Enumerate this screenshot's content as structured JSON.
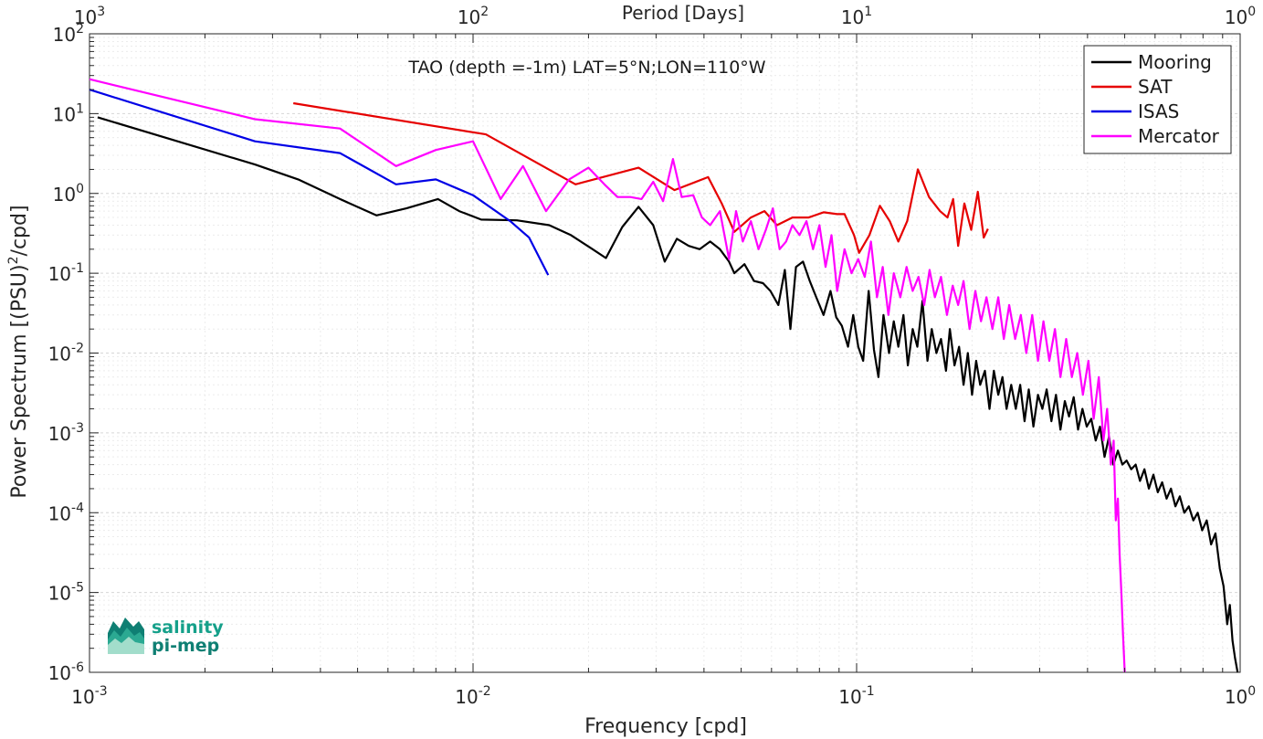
{
  "chart_data": {
    "type": "line",
    "title": "TAO (depth =-1m) LAT=5°N;LON=110°W",
    "xlabel": "Frequency [cpd]",
    "ylabel": "Power Spectrum [(PSU)²/cpd]",
    "ylabel_main": "Power Spectrum [(PSU)",
    "ylabel_sup": "2",
    "ylabel_tail": "/cpd]",
    "top_xlabel": "Period [Days]",
    "x_scale": "log",
    "y_scale": "log",
    "xlim": [
      0.001,
      1
    ],
    "ylim": [
      1e-06,
      100
    ],
    "grid": true,
    "legend_position": "top-right",
    "x_ticks": [
      {
        "value": 0.001,
        "base": "10",
        "exp": "-3"
      },
      {
        "value": 0.01,
        "base": "10",
        "exp": "-2"
      },
      {
        "value": 0.1,
        "base": "10",
        "exp": "-1"
      },
      {
        "value": 1,
        "base": "10",
        "exp": "0"
      }
    ],
    "top_ticks": [
      {
        "period": 1000,
        "base": "10",
        "exp": "3"
      },
      {
        "period": 100,
        "base": "10",
        "exp": "2"
      },
      {
        "period": 10,
        "base": "10",
        "exp": "1"
      },
      {
        "period": 1,
        "base": "10",
        "exp": "0"
      }
    ],
    "y_ticks": [
      {
        "value": 100,
        "base": "10",
        "exp": "2"
      },
      {
        "value": 10,
        "base": "10",
        "exp": "1"
      },
      {
        "value": 1,
        "base": "10",
        "exp": "0"
      },
      {
        "value": 0.1,
        "base": "10",
        "exp": "-1"
      },
      {
        "value": 0.01,
        "base": "10",
        "exp": "-2"
      },
      {
        "value": 0.001,
        "base": "10",
        "exp": "-3"
      },
      {
        "value": 0.0001,
        "base": "10",
        "exp": "-4"
      },
      {
        "value": 1e-05,
        "base": "10",
        "exp": "-5"
      },
      {
        "value": 1e-06,
        "base": "10",
        "exp": "-6"
      }
    ],
    "series": [
      {
        "name": "Mooring",
        "color": "#000000",
        "points": [
          [
            0.00105,
            9
          ],
          [
            0.0027,
            2.3
          ],
          [
            0.0035,
            1.5
          ],
          [
            0.0045,
            0.85
          ],
          [
            0.0056,
            0.53
          ],
          [
            0.0067,
            0.65
          ],
          [
            0.0081,
            0.85
          ],
          [
            0.0092,
            0.6
          ],
          [
            0.0105,
            0.47
          ],
          [
            0.013,
            0.46
          ],
          [
            0.0158,
            0.4
          ],
          [
            0.018,
            0.3
          ],
          [
            0.0205,
            0.2
          ],
          [
            0.0222,
            0.155
          ],
          [
            0.0245,
            0.38
          ],
          [
            0.027,
            0.68
          ],
          [
            0.0295,
            0.4
          ],
          [
            0.0316,
            0.14
          ],
          [
            0.034,
            0.27
          ],
          [
            0.0365,
            0.22
          ],
          [
            0.039,
            0.2
          ],
          [
            0.0415,
            0.25
          ],
          [
            0.044,
            0.2
          ],
          [
            0.0465,
            0.14
          ],
          [
            0.048,
            0.1
          ],
          [
            0.051,
            0.13
          ],
          [
            0.054,
            0.08
          ],
          [
            0.057,
            0.075
          ],
          [
            0.0596,
            0.06
          ],
          [
            0.0625,
            0.04
          ],
          [
            0.065,
            0.11
          ],
          [
            0.0672,
            0.02
          ],
          [
            0.0695,
            0.12
          ],
          [
            0.0725,
            0.14
          ],
          [
            0.0755,
            0.08
          ],
          [
            0.0785,
            0.05
          ],
          [
            0.082,
            0.03
          ],
          [
            0.0855,
            0.06
          ],
          [
            0.0885,
            0.028
          ],
          [
            0.0915,
            0.022
          ],
          [
            0.095,
            0.012
          ],
          [
            0.098,
            0.03
          ],
          [
            0.101,
            0.012
          ],
          [
            0.104,
            0.008
          ],
          [
            0.1075,
            0.06
          ],
          [
            0.111,
            0.011
          ],
          [
            0.114,
            0.005
          ],
          [
            0.1175,
            0.03
          ],
          [
            0.1215,
            0.01
          ],
          [
            0.125,
            0.025
          ],
          [
            0.1285,
            0.012
          ],
          [
            0.1325,
            0.03
          ],
          [
            0.136,
            0.007
          ],
          [
            0.14,
            0.02
          ],
          [
            0.144,
            0.012
          ],
          [
            0.1485,
            0.045
          ],
          [
            0.153,
            0.008
          ],
          [
            0.157,
            0.02
          ],
          [
            0.1615,
            0.01
          ],
          [
            0.166,
            0.015
          ],
          [
            0.171,
            0.006
          ],
          [
            0.175,
            0.02
          ],
          [
            0.18,
            0.007
          ],
          [
            0.185,
            0.012
          ],
          [
            0.19,
            0.004
          ],
          [
            0.195,
            0.01
          ],
          [
            0.2,
            0.003
          ],
          [
            0.205,
            0.008
          ],
          [
            0.21,
            0.004
          ],
          [
            0.216,
            0.006
          ],
          [
            0.222,
            0.002
          ],
          [
            0.228,
            0.006
          ],
          [
            0.234,
            0.003
          ],
          [
            0.24,
            0.005
          ],
          [
            0.246,
            0.002
          ],
          [
            0.253,
            0.004
          ],
          [
            0.26,
            0.002
          ],
          [
            0.267,
            0.004
          ],
          [
            0.274,
            0.0014
          ],
          [
            0.281,
            0.0035
          ],
          [
            0.289,
            0.0012
          ],
          [
            0.297,
            0.003
          ],
          [
            0.305,
            0.002
          ],
          [
            0.313,
            0.0035
          ],
          [
            0.322,
            0.0014
          ],
          [
            0.331,
            0.003
          ],
          [
            0.34,
            0.0011
          ],
          [
            0.349,
            0.0025
          ],
          [
            0.358,
            0.0016
          ],
          [
            0.368,
            0.0028
          ],
          [
            0.378,
            0.0011
          ],
          [
            0.388,
            0.002
          ],
          [
            0.398,
            0.0012
          ],
          [
            0.409,
            0.0015
          ],
          [
            0.42,
            0.0008
          ],
          [
            0.431,
            0.0012
          ],
          [
            0.443,
            0.0005
          ],
          [
            0.455,
            0.0009
          ],
          [
            0.467,
            0.0004
          ],
          [
            0.48,
            0.0006
          ],
          [
            0.493,
            0.0004
          ],
          [
            0.506,
            0.00045
          ],
          [
            0.52,
            0.00035
          ],
          [
            0.534,
            0.0004
          ],
          [
            0.548,
            0.00025
          ],
          [
            0.563,
            0.00035
          ],
          [
            0.578,
            0.0002
          ],
          [
            0.594,
            0.0003
          ],
          [
            0.61,
            0.00018
          ],
          [
            0.626,
            0.00024
          ],
          [
            0.643,
            0.00015
          ],
          [
            0.66,
            0.0002
          ],
          [
            0.678,
            0.00012
          ],
          [
            0.696,
            0.00016
          ],
          [
            0.715,
            0.0001
          ],
          [
            0.735,
            0.00012
          ],
          [
            0.755,
            8e-05
          ],
          [
            0.775,
            0.0001
          ],
          [
            0.796,
            6e-05
          ],
          [
            0.818,
            8e-05
          ],
          [
            0.84,
            4e-05
          ],
          [
            0.862,
            5.5e-05
          ],
          [
            0.885,
            2e-05
          ],
          [
            0.905,
            1.2e-05
          ],
          [
            0.925,
            4e-06
          ],
          [
            0.94,
            7e-06
          ],
          [
            0.955,
            2.5e-06
          ],
          [
            0.97,
            1.5e-06
          ],
          [
            0.985,
            1e-06
          ]
        ]
      },
      {
        "name": "SAT",
        "color": "#e60000",
        "points": [
          [
            0.0034,
            13.5
          ],
          [
            0.0108,
            5.5
          ],
          [
            0.0185,
            1.3
          ],
          [
            0.027,
            2.1
          ],
          [
            0.0335,
            1.1
          ],
          [
            0.041,
            1.6
          ],
          [
            0.0445,
            0.75
          ],
          [
            0.048,
            0.33
          ],
          [
            0.053,
            0.5
          ],
          [
            0.0575,
            0.6
          ],
          [
            0.062,
            0.4
          ],
          [
            0.068,
            0.5
          ],
          [
            0.075,
            0.5
          ],
          [
            0.082,
            0.58
          ],
          [
            0.089,
            0.55
          ],
          [
            0.093,
            0.55
          ],
          [
            0.0985,
            0.3
          ],
          [
            0.1015,
            0.18
          ],
          [
            0.108,
            0.3
          ],
          [
            0.115,
            0.7
          ],
          [
            0.122,
            0.45
          ],
          [
            0.1285,
            0.25
          ],
          [
            0.1355,
            0.45
          ],
          [
            0.1445,
            2.0
          ],
          [
            0.1545,
            0.9
          ],
          [
            0.165,
            0.6
          ],
          [
            0.1725,
            0.5
          ],
          [
            0.1785,
            0.85
          ],
          [
            0.184,
            0.22
          ],
          [
            0.191,
            0.75
          ],
          [
            0.199,
            0.35
          ],
          [
            0.207,
            1.05
          ],
          [
            0.2145,
            0.28
          ],
          [
            0.22,
            0.36
          ]
        ]
      },
      {
        "name": "ISAS",
        "color": "#0000e6",
        "points": [
          [
            0.001,
            20
          ],
          [
            0.0027,
            4.5
          ],
          [
            0.0045,
            3.2
          ],
          [
            0.0063,
            1.3
          ],
          [
            0.008,
            1.5
          ],
          [
            0.01,
            0.95
          ],
          [
            0.0125,
            0.45
          ],
          [
            0.014,
            0.28
          ],
          [
            0.0157,
            0.095
          ]
        ]
      },
      {
        "name": "Mercator",
        "color": "#ff00ff",
        "points": [
          [
            0.001,
            27
          ],
          [
            0.0027,
            8.5
          ],
          [
            0.0045,
            6.5
          ],
          [
            0.0063,
            2.2
          ],
          [
            0.008,
            3.5
          ],
          [
            0.01,
            4.5
          ],
          [
            0.0118,
            0.85
          ],
          [
            0.0135,
            2.2
          ],
          [
            0.0155,
            0.6
          ],
          [
            0.0178,
            1.5
          ],
          [
            0.02,
            2.1
          ],
          [
            0.022,
            1.3
          ],
          [
            0.0238,
            0.9
          ],
          [
            0.0257,
            0.9
          ],
          [
            0.0275,
            0.85
          ],
          [
            0.0295,
            1.4
          ],
          [
            0.0313,
            0.8
          ],
          [
            0.0332,
            2.7
          ],
          [
            0.035,
            0.9
          ],
          [
            0.0375,
            0.95
          ],
          [
            0.0395,
            0.5
          ],
          [
            0.0415,
            0.4
          ],
          [
            0.044,
            0.6
          ],
          [
            0.0465,
            0.15
          ],
          [
            0.0485,
            0.6
          ],
          [
            0.0505,
            0.25
          ],
          [
            0.053,
            0.45
          ],
          [
            0.0555,
            0.2
          ],
          [
            0.058,
            0.35
          ],
          [
            0.0605,
            0.65
          ],
          [
            0.063,
            0.2
          ],
          [
            0.0655,
            0.25
          ],
          [
            0.068,
            0.4
          ],
          [
            0.071,
            0.3
          ],
          [
            0.074,
            0.45
          ],
          [
            0.077,
            0.2
          ],
          [
            0.08,
            0.4
          ],
          [
            0.083,
            0.12
          ],
          [
            0.086,
            0.3
          ],
          [
            0.089,
            0.06
          ],
          [
            0.093,
            0.2
          ],
          [
            0.097,
            0.1
          ],
          [
            0.101,
            0.15
          ],
          [
            0.105,
            0.09
          ],
          [
            0.109,
            0.25
          ],
          [
            0.113,
            0.05
          ],
          [
            0.117,
            0.12
          ],
          [
            0.121,
            0.03
          ],
          [
            0.125,
            0.1
          ],
          [
            0.13,
            0.05
          ],
          [
            0.135,
            0.12
          ],
          [
            0.14,
            0.06
          ],
          [
            0.145,
            0.09
          ],
          [
            0.15,
            0.04
          ],
          [
            0.155,
            0.11
          ],
          [
            0.16,
            0.05
          ],
          [
            0.166,
            0.09
          ],
          [
            0.172,
            0.03
          ],
          [
            0.178,
            0.07
          ],
          [
            0.184,
            0.04
          ],
          [
            0.19,
            0.08
          ],
          [
            0.197,
            0.02
          ],
          [
            0.204,
            0.06
          ],
          [
            0.211,
            0.025
          ],
          [
            0.218,
            0.05
          ],
          [
            0.226,
            0.02
          ],
          [
            0.234,
            0.05
          ],
          [
            0.242,
            0.015
          ],
          [
            0.25,
            0.04
          ],
          [
            0.259,
            0.015
          ],
          [
            0.268,
            0.03
          ],
          [
            0.277,
            0.01
          ],
          [
            0.287,
            0.03
          ],
          [
            0.297,
            0.008
          ],
          [
            0.307,
            0.025
          ],
          [
            0.318,
            0.008
          ],
          [
            0.329,
            0.02
          ],
          [
            0.34,
            0.005
          ],
          [
            0.352,
            0.015
          ],
          [
            0.364,
            0.005
          ],
          [
            0.376,
            0.01
          ],
          [
            0.389,
            0.003
          ],
          [
            0.402,
            0.008
          ],
          [
            0.415,
            0.0015
          ],
          [
            0.428,
            0.005
          ],
          [
            0.44,
            0.0008
          ],
          [
            0.45,
            0.002
          ],
          [
            0.46,
            0.0004
          ],
          [
            0.468,
            0.0008
          ],
          [
            0.474,
            8e-05
          ],
          [
            0.48,
            0.00015
          ],
          [
            0.485,
            3e-05
          ],
          [
            0.49,
            1e-05
          ],
          [
            0.495,
            3e-06
          ],
          [
            0.5,
            1e-06
          ]
        ]
      }
    ]
  },
  "logo": {
    "line1": "salinity",
    "line2": "pi-mep"
  }
}
